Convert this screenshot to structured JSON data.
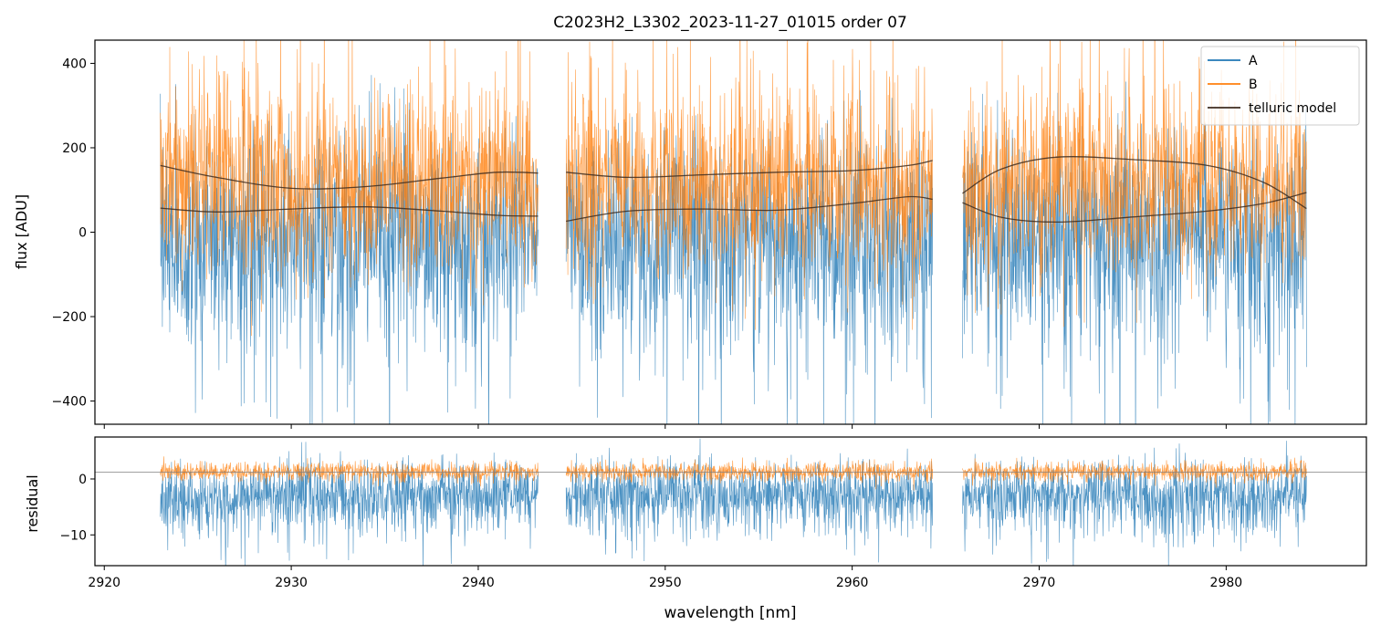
{
  "chart_data": {
    "type": "line",
    "title": "C2023H2_L3302_2023-11-27_01015  order 07",
    "xlabel": "wavelength [nm]",
    "xlim": [
      2919.5,
      2987.5
    ],
    "x_ticks": [
      2920,
      2930,
      2940,
      2950,
      2960,
      2970,
      2980
    ],
    "segments": [
      [
        2923.0,
        2943.2
      ],
      [
        2944.7,
        2964.3
      ],
      [
        2965.9,
        2984.3
      ]
    ],
    "legend": {
      "location": "top-right",
      "entries": [
        "A",
        "B",
        "telluric model"
      ]
    },
    "colors": {
      "A": "#1f77b4",
      "B": "#ff7f0e",
      "model": "#3d2b1f",
      "zero_line": "#808080"
    },
    "panels": [
      {
        "name": "flux",
        "ylabel": "flux [ADU]",
        "ylim": [
          -455,
          455
        ],
        "y_ticks": [
          -400,
          -200,
          0,
          200,
          400
        ],
        "series": [
          {
            "name": "A",
            "center": 20,
            "spread": 185,
            "skew": -1
          },
          {
            "name": "B",
            "center": 95,
            "spread": 170,
            "skew": 1
          }
        ],
        "telluric_model": [
          {
            "segment": 0,
            "points": [
              [
                2923.0,
                158
              ],
              [
                2926,
                130
              ],
              [
                2930,
                104
              ],
              [
                2934,
                108
              ],
              [
                2938,
                128
              ],
              [
                2941,
                142
              ],
              [
                2943.2,
                140
              ]
            ]
          },
          {
            "segment": 0,
            "points": [
              [
                2923.0,
                57
              ],
              [
                2926,
                48
              ],
              [
                2930,
                55
              ],
              [
                2934,
                60
              ],
              [
                2938,
                50
              ],
              [
                2941,
                40
              ],
              [
                2943.2,
                38
              ]
            ]
          },
          {
            "segment": 1,
            "points": [
              [
                2944.7,
                142
              ],
              [
                2948,
                130
              ],
              [
                2952,
                136
              ],
              [
                2956,
                142
              ],
              [
                2960,
                146
              ],
              [
                2963,
                158
              ],
              [
                2964.3,
                170
              ]
            ]
          },
          {
            "segment": 1,
            "points": [
              [
                2944.7,
                26
              ],
              [
                2948,
                50
              ],
              [
                2952,
                55
              ],
              [
                2956,
                52
              ],
              [
                2960,
                68
              ],
              [
                2963,
                84
              ],
              [
                2964.3,
                78
              ]
            ]
          },
          {
            "segment": 2,
            "points": [
              [
                2965.9,
                92
              ],
              [
                2968,
                150
              ],
              [
                2971,
                178
              ],
              [
                2975,
                172
              ],
              [
                2979,
                158
              ],
              [
                2982,
                118
              ],
              [
                2984.3,
                56
              ]
            ]
          },
          {
            "segment": 2,
            "points": [
              [
                2965.9,
                70
              ],
              [
                2968,
                35
              ],
              [
                2971,
                24
              ],
              [
                2975,
                36
              ],
              [
                2979,
                50
              ],
              [
                2982,
                68
              ],
              [
                2984.3,
                94
              ]
            ]
          }
        ]
      },
      {
        "name": "residual",
        "ylabel": "residual",
        "ylim": [
          -15.5,
          7.5
        ],
        "y_ticks": [
          -10,
          0
        ],
        "reference_line": 1.2,
        "series": [
          {
            "name": "A",
            "center": -2.0,
            "spread": 4.5,
            "skew": -1
          },
          {
            "name": "B",
            "center": 1.3,
            "spread": 1.4,
            "skew": 0
          }
        ]
      }
    ]
  }
}
